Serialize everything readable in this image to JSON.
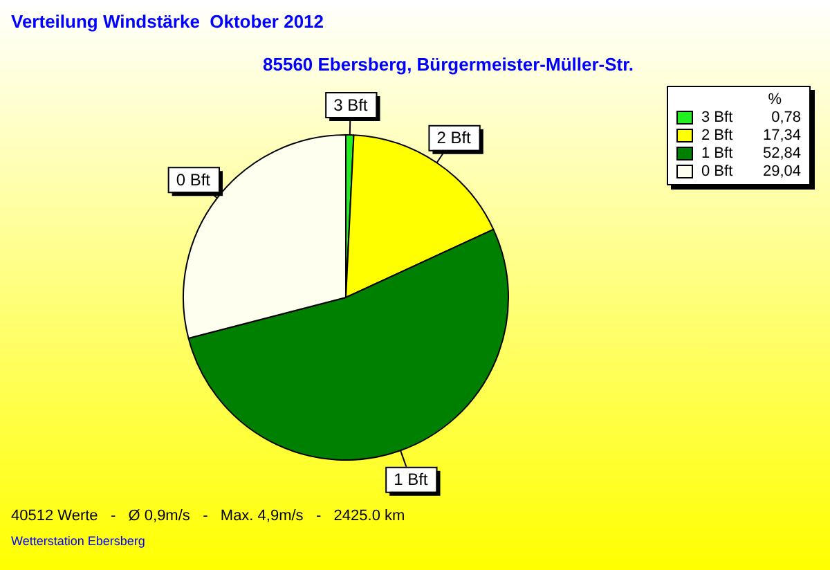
{
  "chart_data": {
    "type": "pie",
    "title": "Verteilung Windstärke  Oktober 2012",
    "subtitle": "85560 Ebersberg, Bürgermeister-Müller-Str.",
    "categories": [
      "3 Bft",
      "2 Bft",
      "1 Bft",
      "0 Bft"
    ],
    "values": [
      0.78,
      17.34,
      52.84,
      29.04
    ],
    "value_labels": [
      "0,78",
      "17,34",
      "52,84",
      "29,04"
    ],
    "colors": [
      "#22ee22",
      "#ffff00",
      "#008000",
      "#fffff0"
    ],
    "legend": "top right",
    "legend_title": "%",
    "annotations": [
      "40512 Werte   -   Ø 0,9m/s   -   Max. 4,9m/s   -   2425.0 km",
      "Wetterstation Ebersberg"
    ]
  }
}
